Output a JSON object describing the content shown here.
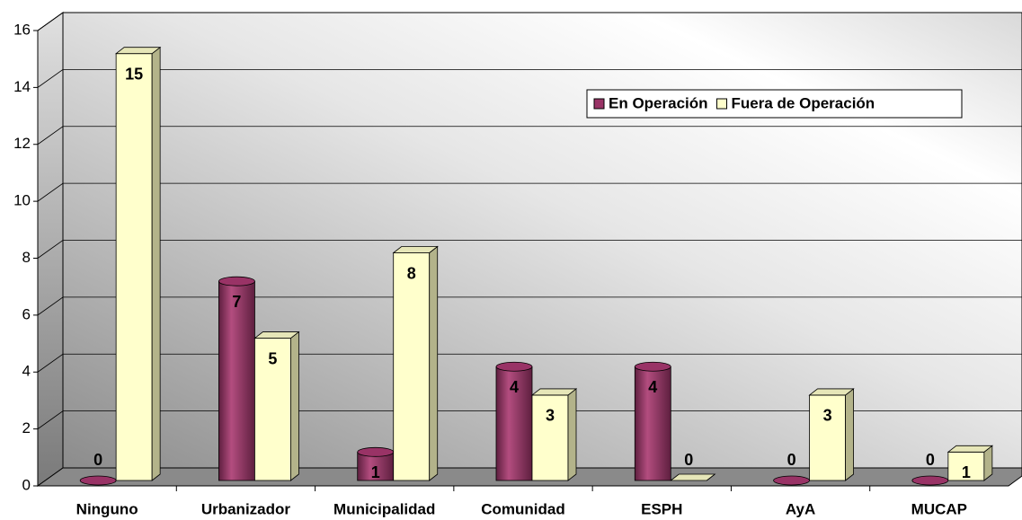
{
  "chart_data": {
    "type": "bar",
    "categories": [
      "Ninguno",
      "Urbanizador",
      "Municipalidad",
      "Comunidad",
      "ESPH",
      "AyA",
      "MUCAP"
    ],
    "series": [
      {
        "name": "En Operación",
        "color": "#993366",
        "values": [
          0,
          7,
          1,
          4,
          4,
          0,
          0
        ]
      },
      {
        "name": "Fuera de Operación",
        "color": "#ffffcc",
        "values": [
          15,
          5,
          8,
          3,
          0,
          3,
          1
        ]
      }
    ],
    "ylim": [
      0,
      16
    ],
    "yticks": [
      0,
      2,
      4,
      6,
      8,
      10,
      12,
      14,
      16
    ],
    "grid": true,
    "legend": "upper right"
  }
}
